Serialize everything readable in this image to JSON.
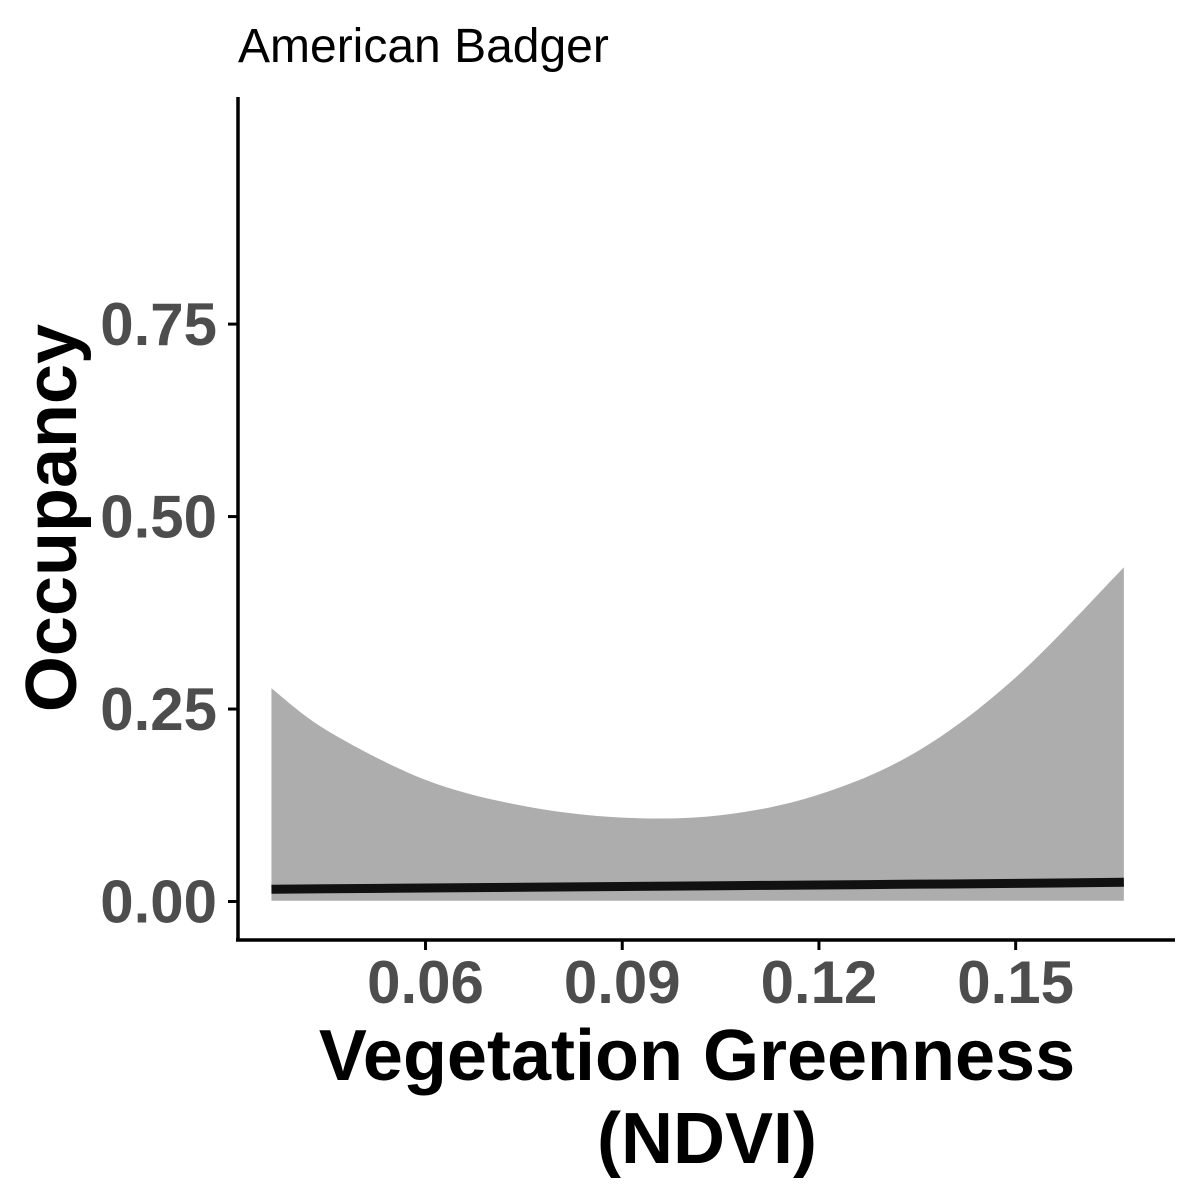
{
  "chart_data": {
    "type": "line",
    "title": "American Badger",
    "xlabel": [
      "Vegetation Greenness",
      "(NDVI)"
    ],
    "ylabel": "Occupancy",
    "xlim": [
      0.0314,
      0.1743
    ],
    "ylim": [
      -0.05,
      1.045
    ],
    "x_ticks": [
      {
        "value": 0.06,
        "label": "0.06"
      },
      {
        "value": 0.09,
        "label": "0.09"
      },
      {
        "value": 0.12,
        "label": "0.12"
      },
      {
        "value": 0.15,
        "label": "0.15"
      }
    ],
    "y_ticks": [
      {
        "value": 0.0,
        "label": "0.00"
      },
      {
        "value": 0.25,
        "label": "0.25"
      },
      {
        "value": 0.5,
        "label": "0.50"
      },
      {
        "value": 0.75,
        "label": "0.75"
      }
    ],
    "grid": false,
    "legend": "none",
    "colors": {
      "line": "#111111",
      "ribbon": "#adadad",
      "axis": "#000000",
      "tick_label": "#4d4d4d"
    },
    "series": [
      {
        "x": [
          0.0365,
          0.045,
          0.06,
          0.075,
          0.09,
          0.105,
          0.12,
          0.135,
          0.15,
          0.1665
        ],
        "y": [
          0.016,
          0.0165,
          0.0175,
          0.0185,
          0.0195,
          0.0205,
          0.0215,
          0.0225,
          0.0235,
          0.025
        ],
        "lower": [
          0.001,
          0.001,
          0.001,
          0.001,
          0.001,
          0.001,
          0.001,
          0.001,
          0.001,
          0.001
        ],
        "upper": [
          0.277,
          0.222,
          0.158,
          0.124,
          0.109,
          0.112,
          0.139,
          0.195,
          0.291,
          0.434
        ]
      }
    ]
  }
}
